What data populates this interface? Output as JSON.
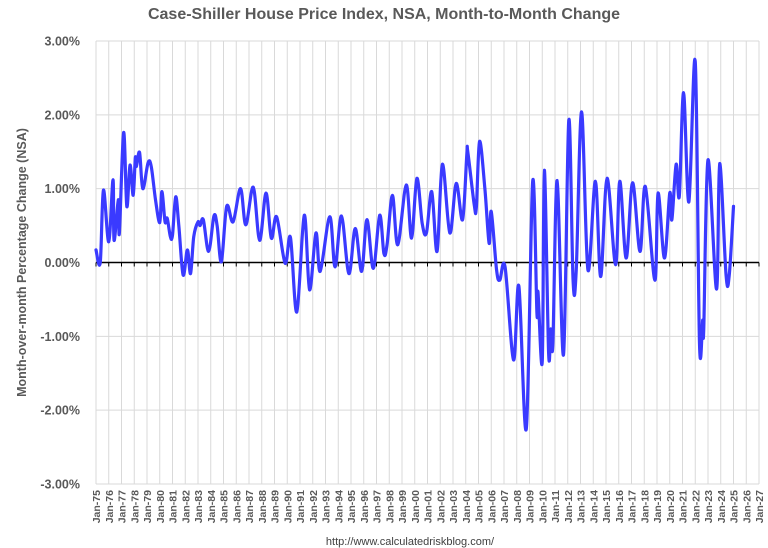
{
  "chart_data": {
    "type": "line",
    "title": "Case-Shiller House Price Index, NSA, Month-to-Month Change",
    "xlabel": "",
    "ylabel": "Month-over-month Percentage Change (NSA)",
    "source": "http://www.calculatedriskblog.com/",
    "ylim": [
      -3,
      3
    ],
    "yticks": [
      "-3.00%",
      "-2.00%",
      "-1.00%",
      "0.00%",
      "1.00%",
      "2.00%",
      "3.00%"
    ],
    "xlim": [
      "1975-01",
      "2027-01"
    ],
    "xticks": [
      "Jan-75",
      "Jan-76",
      "Jan-77",
      "Jan-78",
      "Jan-79",
      "Jan-80",
      "Jan-81",
      "Jan-82",
      "Jan-83",
      "Jan-84",
      "Jan-85",
      "Jan-86",
      "Jan-87",
      "Jan-88",
      "Jan-89",
      "Jan-90",
      "Jan-91",
      "Jan-92",
      "Jan-93",
      "Jan-94",
      "Jan-95",
      "Jan-96",
      "Jan-97",
      "Jan-98",
      "Jan-99",
      "Jan-00",
      "Jan-01",
      "Jan-02",
      "Jan-03",
      "Jan-04",
      "Jan-05",
      "Jan-06",
      "Jan-07",
      "Jan-08",
      "Jan-09",
      "Jan-10",
      "Jan-11",
      "Jan-12",
      "Jan-13",
      "Jan-14",
      "Jan-15",
      "Jan-16",
      "Jan-17",
      "Jan-18",
      "Jan-19",
      "Jan-20",
      "Jan-21",
      "Jan-22",
      "Jan-23",
      "Jan-24",
      "Jan-25",
      "Jan-26",
      "Jan-27"
    ],
    "grid": true,
    "legend": "none",
    "line_color": "#3a3aff",
    "series": [
      {
        "x": [
          "1975-01",
          "1975-05",
          "1975-08",
          "1976-01",
          "1976-05",
          "1976-06",
          "1976-10",
          "1976-11",
          "1977-03",
          "1977-06",
          "1977-09",
          "1977-12",
          "1978-02",
          "1978-03",
          "1978-06",
          "1978-09",
          "1979-02",
          "1979-05",
          "1979-09",
          "1980-01",
          "1980-03",
          "1980-06",
          "1980-08",
          "1980-11",
          "1981-01",
          "1981-04",
          "1981-07",
          "1981-11",
          "1982-03",
          "1982-06",
          "1982-09",
          "1983-01",
          "1983-03",
          "1983-06",
          "1983-11",
          "1984-04",
          "1984-07",
          "1984-11",
          "1985-04",
          "1985-10",
          "1986-05",
          "1986-10",
          "1987-05",
          "1987-11",
          "1988-05",
          "1988-10",
          "1989-03",
          "1989-11",
          "1990-04",
          "1990-10",
          "1991-05",
          "1991-10",
          "1992-04",
          "1992-08",
          "1993-05",
          "1993-10",
          "1994-04",
          "1994-11",
          "1995-05",
          "1995-11",
          "1996-04",
          "1996-10",
          "1997-04",
          "1997-08",
          "1997-11",
          "1998-04",
          "1998-09",
          "1999-05",
          "1999-10",
          "2000-03",
          "2000-08",
          "2000-12",
          "2001-05",
          "2001-10",
          "2002-03",
          "2002-10",
          "2003-04",
          "2003-10",
          "2004-02",
          "2004-03",
          "2004-09",
          "2004-11",
          "2005-02",
          "2005-07",
          "2005-11",
          "2006-01",
          "2006-06",
          "2006-09",
          "2007-02",
          "2007-10",
          "2008-03",
          "2008-10",
          "2009-04",
          "2009-08",
          "2009-09",
          "2010-01",
          "2010-03",
          "2010-07",
          "2010-09",
          "2010-11",
          "2011-03",
          "2011-09",
          "2012-02",
          "2012-06",
          "2012-09",
          "2013-02",
          "2013-08",
          "2014-03",
          "2014-08",
          "2015-02",
          "2015-10",
          "2016-02",
          "2016-08",
          "2017-02",
          "2017-09",
          "2018-02",
          "2018-11",
          "2019-02",
          "2019-08",
          "2020-01",
          "2020-03",
          "2020-07",
          "2020-10",
          "2021-02",
          "2021-07",
          "2022-01",
          "2022-05",
          "2022-08",
          "2022-09",
          "2023-01",
          "2023-09",
          "2023-12",
          "2024-06",
          "2024-09",
          "2025-01"
        ],
        "y": [
          0.17,
          0.0,
          0.98,
          0.28,
          1.12,
          0.3,
          0.85,
          0.4,
          1.76,
          0.76,
          1.32,
          0.91,
          1.42,
          1.3,
          1.49,
          1.0,
          1.35,
          1.3,
          0.85,
          0.54,
          0.96,
          0.55,
          0.6,
          0.35,
          0.37,
          0.89,
          0.49,
          -0.17,
          0.17,
          -0.15,
          0.35,
          0.55,
          0.5,
          0.58,
          0.15,
          0.63,
          0.5,
          0.01,
          0.76,
          0.55,
          1.0,
          0.51,
          1.02,
          0.3,
          0.94,
          0.33,
          0.62,
          -0.01,
          0.34,
          -0.67,
          0.64,
          -0.37,
          0.4,
          -0.12,
          0.62,
          -0.06,
          0.63,
          -0.15,
          0.46,
          -0.12,
          0.58,
          -0.08,
          0.64,
          0.12,
          0.25,
          0.91,
          0.24,
          1.05,
          0.33,
          1.14,
          0.53,
          0.4,
          0.96,
          0.15,
          1.33,
          0.4,
          1.07,
          0.58,
          1.46,
          1.49,
          0.78,
          0.75,
          1.64,
          1.0,
          0.26,
          0.69,
          -0.1,
          -0.24,
          -0.06,
          -1.32,
          -0.32,
          -2.25,
          1.1,
          -0.69,
          -0.4,
          -1.34,
          1.25,
          -1.23,
          -0.9,
          -1.1,
          1.11,
          -1.25,
          1.93,
          -0.24,
          -0.1,
          2.04,
          -0.1,
          1.1,
          -0.19,
          1.14,
          -0.03,
          1.1,
          0.06,
          1.08,
          0.15,
          1.03,
          -0.24,
          0.94,
          0.06,
          0.94,
          0.58,
          1.33,
          0.9,
          2.3,
          0.82,
          2.72,
          -1.1,
          -0.78,
          -0.9,
          1.39,
          -0.36,
          1.34,
          -0.17,
          -0.17,
          0.76
        ]
      }
    ]
  }
}
